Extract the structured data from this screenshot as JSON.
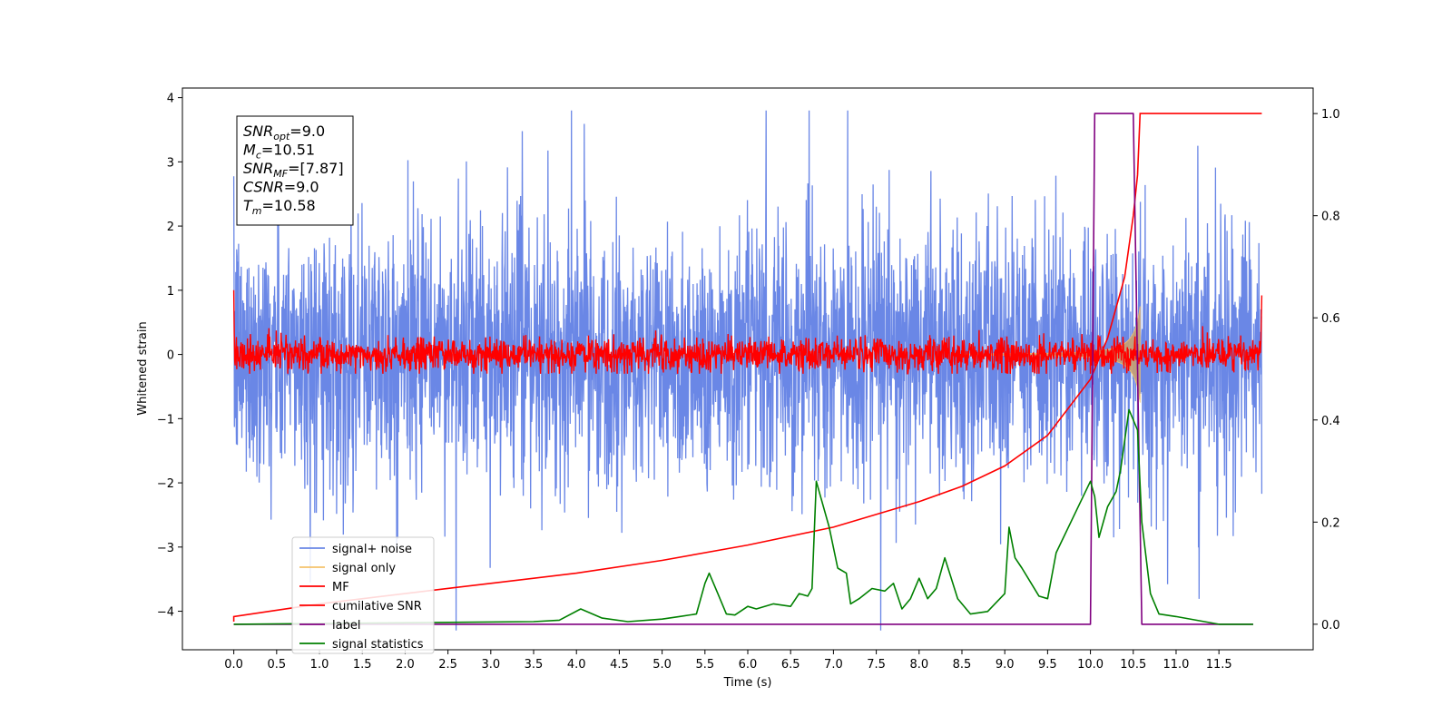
{
  "chart_data": {
    "type": "line",
    "xlabel": "Time (s)",
    "ylabel": "Whitened strain",
    "xlim": [
      -0.6,
      12.6
    ],
    "ylim": [
      -4.6,
      4.15
    ],
    "y2lim": [
      -0.05,
      1.05
    ],
    "x_ticks": [
      "0.0",
      "0.5",
      "1.0",
      "1.5",
      "2.0",
      "2.5",
      "3.0",
      "3.5",
      "4.0",
      "4.5",
      "5.0",
      "5.5",
      "6.0",
      "6.5",
      "7.0",
      "7.5",
      "8.0",
      "8.5",
      "9.0",
      "9.5",
      "10.0",
      "10.5",
      "11.0",
      "11.5"
    ],
    "y_ticks": [
      "4",
      "3",
      "2",
      "1",
      "0",
      "−1",
      "−2",
      "−3",
      "−4"
    ],
    "y2_ticks": [
      "1.0",
      "0.8",
      "0.6",
      "0.4",
      "0.2",
      "0.0"
    ],
    "colors": {
      "signal_noise": "#6a87e6",
      "signal_only": "#f5c26b",
      "mf": "#ff0000",
      "cumulative_snr": "#ff0000",
      "label": "#800080",
      "signal_statistics": "#008000"
    },
    "series": [
      {
        "name": "signal+ noise",
        "kind": "noise",
        "amplitude": 1.0,
        "t_range": [
          0.0,
          12.0
        ]
      },
      {
        "name": "signal only",
        "kind": "chirp",
        "t_start": 8.5,
        "t_merge": 10.58,
        "peak": 0.75
      },
      {
        "name": "MF",
        "kind": "noise",
        "amplitude": 0.13,
        "t_range": [
          0.0,
          12.0
        ]
      },
      {
        "name": "cumilative SNR",
        "axis": "right",
        "x": [
          0.0,
          1.0,
          2.0,
          3.0,
          4.0,
          5.0,
          6.0,
          7.0,
          8.0,
          8.5,
          9.0,
          9.5,
          10.0,
          10.2,
          10.4,
          10.5,
          10.55,
          10.58,
          12.0
        ],
        "y": [
          0.015,
          0.04,
          0.06,
          0.08,
          0.1,
          0.125,
          0.155,
          0.19,
          0.24,
          0.27,
          0.31,
          0.37,
          0.48,
          0.56,
          0.68,
          0.8,
          0.88,
          1.0,
          1.0
        ]
      },
      {
        "name": "label",
        "axis": "right",
        "x": [
          0.0,
          10.0,
          10.05,
          10.5,
          10.6,
          11.9
        ],
        "y": [
          0.0,
          0.0,
          1.0,
          1.0,
          0.0,
          0.0
        ]
      },
      {
        "name": "signal statistics",
        "axis": "right",
        "x": [
          0.0,
          3.5,
          3.8,
          4.05,
          4.3,
          4.6,
          5.0,
          5.2,
          5.4,
          5.5,
          5.55,
          5.65,
          5.75,
          5.85,
          6.0,
          6.1,
          6.3,
          6.5,
          6.6,
          6.7,
          6.75,
          6.8,
          6.85,
          6.95,
          7.05,
          7.15,
          7.2,
          7.3,
          7.45,
          7.6,
          7.7,
          7.8,
          7.9,
          8.0,
          8.1,
          8.2,
          8.3,
          8.45,
          8.6,
          8.8,
          9.0,
          9.05,
          9.12,
          9.2,
          9.4,
          9.5,
          9.6,
          9.8,
          10.0,
          10.05,
          10.1,
          10.2,
          10.3,
          10.35,
          10.45,
          10.55,
          10.6,
          10.7,
          10.8,
          11.0,
          11.5,
          11.9
        ],
        "y": [
          0.0,
          0.005,
          0.008,
          0.03,
          0.012,
          0.005,
          0.01,
          0.015,
          0.02,
          0.08,
          0.1,
          0.06,
          0.02,
          0.018,
          0.035,
          0.03,
          0.04,
          0.035,
          0.06,
          0.055,
          0.07,
          0.28,
          0.25,
          0.19,
          0.11,
          0.1,
          0.04,
          0.05,
          0.07,
          0.065,
          0.08,
          0.03,
          0.05,
          0.09,
          0.05,
          0.07,
          0.13,
          0.05,
          0.02,
          0.025,
          0.06,
          0.19,
          0.13,
          0.11,
          0.055,
          0.05,
          0.14,
          0.21,
          0.28,
          0.25,
          0.17,
          0.23,
          0.26,
          0.3,
          0.42,
          0.38,
          0.2,
          0.06,
          0.02,
          0.015,
          0.0,
          0.0
        ]
      }
    ],
    "legend": {
      "placement": "lower-left",
      "entries": [
        "signal+ noise",
        "signal only",
        "MF",
        "cumilative SNR",
        "label",
        "signal statistics"
      ]
    },
    "annotation": {
      "lines": [
        {
          "var": "SNR",
          "sub": "opt",
          "value": "=9.0"
        },
        {
          "var": "M",
          "sub": "c",
          "value": "=10.51"
        },
        {
          "var": "SNR",
          "sub": "MF",
          "value": "=[7.87]"
        },
        {
          "var": "CSNR",
          "sub": "",
          "value": "=9.0"
        },
        {
          "var": "T",
          "sub": "m",
          "value": "=10.58"
        }
      ]
    }
  }
}
